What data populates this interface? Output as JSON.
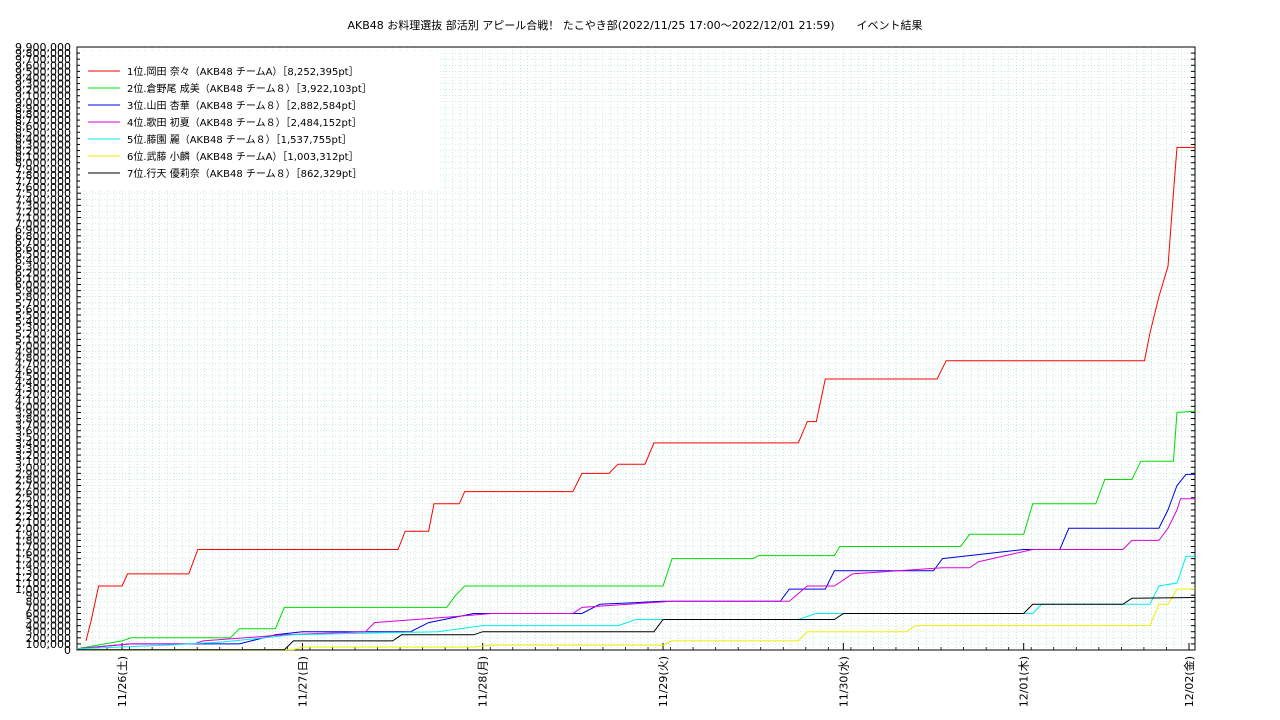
{
  "chart_data": {
    "type": "line",
    "title": "AKB48 お料理選抜 部活別 アピール合戦！ たこやき部(2022/11/25 17:00～2022/12/01 21:59)　　イベント結果",
    "xlabel": "",
    "ylabel": "",
    "x_range_days": [
      0,
      6.2
    ],
    "ylim": [
      0,
      9900000
    ],
    "y_tick_step": 100000,
    "y_tick_labels_note": "every 100,000 from 100,000 to 9,900,000 plus 0",
    "x_ticks": [
      {
        "day": 0.25,
        "label": "11/26(土)"
      },
      {
        "day": 1.25,
        "label": "11/27(日)"
      },
      {
        "day": 2.25,
        "label": "11/28(月)"
      },
      {
        "day": 3.25,
        "label": "11/29(火)"
      },
      {
        "day": 4.25,
        "label": "11/30(水)"
      },
      {
        "day": 5.25,
        "label": "12/01(木)"
      },
      {
        "day": 6.25,
        "label": "12/02(金)"
      }
    ],
    "grid": true,
    "legend_position": "top-left",
    "series": [
      {
        "name": "1位.岡田 奈々（AKB48 チームA）［8,252,395pt］",
        "color": "#ff0000",
        "points": [
          [
            0.05,
            150000
          ],
          [
            0.08,
            500000
          ],
          [
            0.12,
            1050000
          ],
          [
            0.25,
            1050000
          ],
          [
            0.28,
            1250000
          ],
          [
            0.62,
            1250000
          ],
          [
            0.67,
            1650000
          ],
          [
            1.78,
            1650000
          ],
          [
            1.82,
            1950000
          ],
          [
            1.95,
            1950000
          ],
          [
            1.98,
            2400000
          ],
          [
            2.12,
            2400000
          ],
          [
            2.15,
            2600000
          ],
          [
            2.75,
            2600000
          ],
          [
            2.8,
            2900000
          ],
          [
            2.95,
            2900000
          ],
          [
            3.0,
            3050000
          ],
          [
            3.15,
            3050000
          ],
          [
            3.2,
            3400000
          ],
          [
            4.0,
            3400000
          ],
          [
            4.05,
            3750000
          ],
          [
            4.1,
            3750000
          ],
          [
            4.15,
            4450000
          ],
          [
            4.77,
            4450000
          ],
          [
            4.82,
            4750000
          ],
          [
            5.92,
            4750000
          ],
          [
            5.95,
            5200000
          ],
          [
            6.0,
            5800000
          ],
          [
            6.05,
            6300000
          ],
          [
            6.08,
            7500000
          ],
          [
            6.1,
            8250000
          ],
          [
            6.2,
            8252395
          ]
        ]
      },
      {
        "name": "2位.倉野尾 成美（AKB48 チーム８）［3,922,103pt］",
        "color": "#00dd00",
        "points": [
          [
            0.0,
            20000
          ],
          [
            0.25,
            150000
          ],
          [
            0.3,
            200000
          ],
          [
            0.85,
            200000
          ],
          [
            0.9,
            350000
          ],
          [
            1.1,
            350000
          ],
          [
            1.15,
            700000
          ],
          [
            2.05,
            700000
          ],
          [
            2.1,
            900000
          ],
          [
            2.15,
            1050000
          ],
          [
            3.25,
            1050000
          ],
          [
            3.3,
            1500000
          ],
          [
            3.75,
            1500000
          ],
          [
            3.78,
            1550000
          ],
          [
            4.2,
            1550000
          ],
          [
            4.23,
            1700000
          ],
          [
            4.9,
            1700000
          ],
          [
            4.95,
            1900000
          ],
          [
            5.25,
            1900000
          ],
          [
            5.3,
            2400000
          ],
          [
            5.65,
            2400000
          ],
          [
            5.7,
            2800000
          ],
          [
            5.85,
            2800000
          ],
          [
            5.9,
            3100000
          ],
          [
            6.08,
            3100000
          ],
          [
            6.1,
            3900000
          ],
          [
            6.2,
            3922103
          ]
        ]
      },
      {
        "name": "3位.山田 杏華（AKB48 チーム８）［2,882,584pt］",
        "color": "#0000dd",
        "points": [
          [
            0.0,
            20000
          ],
          [
            0.3,
            100000
          ],
          [
            0.9,
            100000
          ],
          [
            1.1,
            250000
          ],
          [
            1.25,
            300000
          ],
          [
            1.85,
            300000
          ],
          [
            1.95,
            450000
          ],
          [
            2.2,
            600000
          ],
          [
            2.8,
            600000
          ],
          [
            2.9,
            750000
          ],
          [
            3.25,
            800000
          ],
          [
            3.9,
            800000
          ],
          [
            3.95,
            1000000
          ],
          [
            4.15,
            1000000
          ],
          [
            4.2,
            1300000
          ],
          [
            4.75,
            1300000
          ],
          [
            4.8,
            1500000
          ],
          [
            5.25,
            1650000
          ],
          [
            5.45,
            1650000
          ],
          [
            5.5,
            2000000
          ],
          [
            6.0,
            2000000
          ],
          [
            6.05,
            2300000
          ],
          [
            6.1,
            2700000
          ],
          [
            6.15,
            2882584
          ],
          [
            6.2,
            2882584
          ]
        ]
      },
      {
        "name": "4位.歌田 初夏（AKB48 チーム８）［2,484,152pt］",
        "color": "#dd00dd",
        "points": [
          [
            0.0,
            20000
          ],
          [
            0.3,
            100000
          ],
          [
            0.65,
            100000
          ],
          [
            0.7,
            150000
          ],
          [
            1.15,
            250000
          ],
          [
            1.6,
            300000
          ],
          [
            1.65,
            450000
          ],
          [
            2.1,
            550000
          ],
          [
            2.3,
            600000
          ],
          [
            2.75,
            600000
          ],
          [
            2.8,
            700000
          ],
          [
            3.3,
            800000
          ],
          [
            3.95,
            800000
          ],
          [
            4.05,
            1050000
          ],
          [
            4.2,
            1050000
          ],
          [
            4.3,
            1250000
          ],
          [
            4.8,
            1350000
          ],
          [
            4.95,
            1350000
          ],
          [
            5.0,
            1450000
          ],
          [
            5.3,
            1650000
          ],
          [
            5.8,
            1650000
          ],
          [
            5.85,
            1800000
          ],
          [
            6.0,
            1800000
          ],
          [
            6.05,
            2000000
          ],
          [
            6.1,
            2300000
          ],
          [
            6.12,
            2484152
          ],
          [
            6.2,
            2484152
          ]
        ]
      },
      {
        "name": "5位.藤園 麗（AKB48 チーム８）［1,537,755pt］",
        "color": "#00eeee",
        "points": [
          [
            0.0,
            20000
          ],
          [
            0.5,
            80000
          ],
          [
            0.8,
            130000
          ],
          [
            1.2,
            250000
          ],
          [
            2.0,
            300000
          ],
          [
            2.25,
            400000
          ],
          [
            3.0,
            400000
          ],
          [
            3.1,
            500000
          ],
          [
            4.0,
            500000
          ],
          [
            4.1,
            600000
          ],
          [
            5.3,
            600000
          ],
          [
            5.35,
            750000
          ],
          [
            5.95,
            750000
          ],
          [
            6.0,
            1050000
          ],
          [
            6.1,
            1100000
          ],
          [
            6.15,
            1537755
          ],
          [
            6.2,
            1537755
          ]
        ]
      },
      {
        "name": "6位.武藤 小麟（AKB48 チームA）［1,003,312pt］",
        "color": "#eeee00",
        "points": [
          [
            0.0,
            5000
          ],
          [
            1.2,
            5000
          ],
          [
            1.25,
            50000
          ],
          [
            2.2,
            50000
          ],
          [
            2.3,
            80000
          ],
          [
            3.25,
            80000
          ],
          [
            3.3,
            150000
          ],
          [
            4.0,
            150000
          ],
          [
            4.05,
            300000
          ],
          [
            4.6,
            300000
          ],
          [
            4.65,
            400000
          ],
          [
            5.95,
            400000
          ],
          [
            6.0,
            750000
          ],
          [
            6.05,
            750000
          ],
          [
            6.1,
            1000000
          ],
          [
            6.2,
            1003312
          ]
        ]
      },
      {
        "name": "7位.行天 優莉奈（AKB48 チーム８）［862,329pt］",
        "color": "#000000",
        "points": [
          [
            0.0,
            5000
          ],
          [
            1.15,
            5000
          ],
          [
            1.2,
            150000
          ],
          [
            1.75,
            150000
          ],
          [
            1.8,
            250000
          ],
          [
            2.2,
            250000
          ],
          [
            2.25,
            300000
          ],
          [
            3.2,
            300000
          ],
          [
            3.25,
            500000
          ],
          [
            4.2,
            500000
          ],
          [
            4.25,
            600000
          ],
          [
            5.25,
            600000
          ],
          [
            5.3,
            750000
          ],
          [
            5.8,
            750000
          ],
          [
            5.85,
            850000
          ],
          [
            6.2,
            862329
          ]
        ]
      }
    ]
  }
}
